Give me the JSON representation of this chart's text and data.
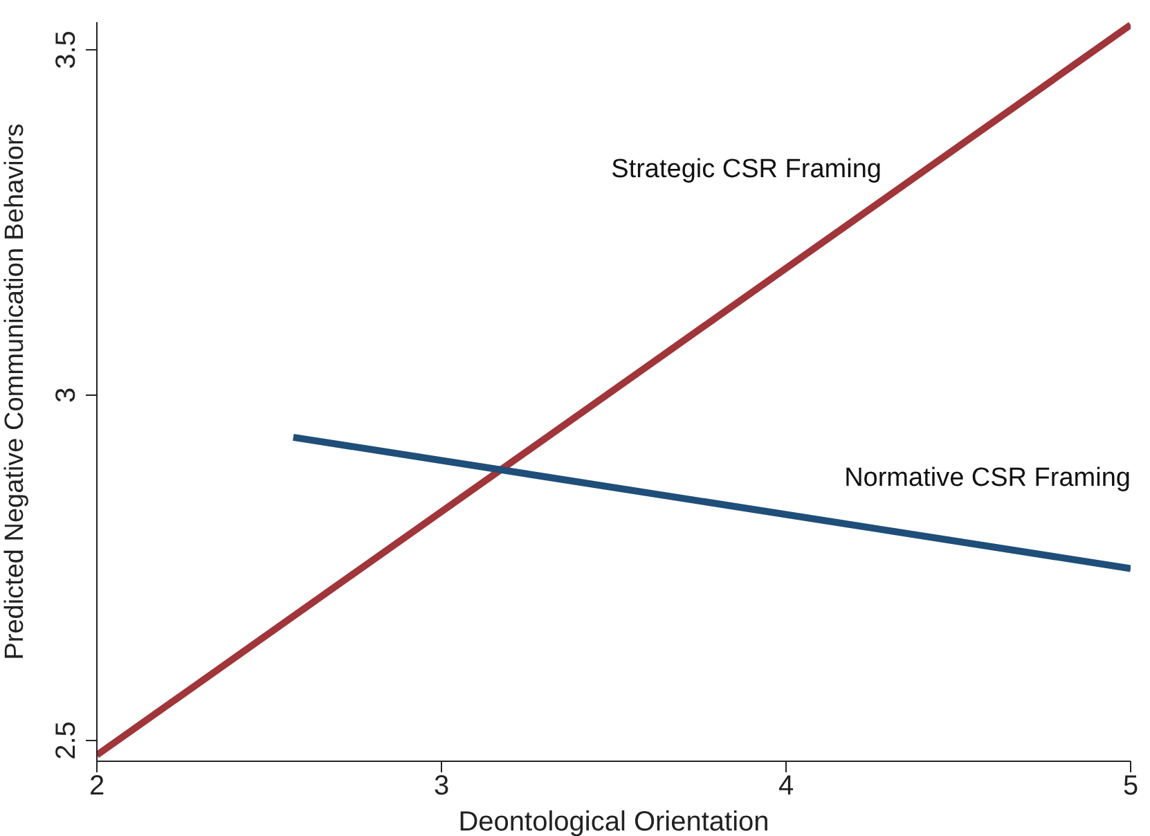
{
  "chart_data": {
    "type": "line",
    "xlabel": "Deontological Orientation",
    "ylabel": "Predicted Negative Communication Behaviors",
    "xlim": [
      2,
      5
    ],
    "xticks": [
      2,
      3,
      4,
      5
    ],
    "ylim": [
      2.47,
      3.54
    ],
    "yticks": [
      2.5,
      3,
      3.5
    ],
    "grid": false,
    "marker": "none",
    "series": [
      {
        "name": "Strategic CSR Framing",
        "color": "#a0353a",
        "x": [
          2,
          5
        ],
        "values": [
          2.479,
          3.536
        ]
      },
      {
        "name": "Normative CSR Framing",
        "color": "#1f4e79",
        "x": [
          2.57,
          5
        ],
        "values": [
          2.939,
          2.749
        ]
      }
    ]
  }
}
